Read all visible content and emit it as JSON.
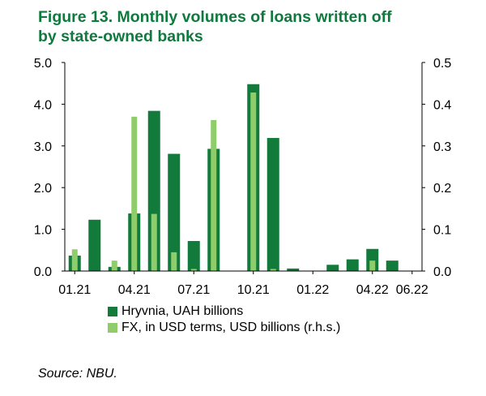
{
  "figure": {
    "title_line1": "Figure 13.  Monthly volumes of loans written off",
    "title_line2": "by state-owned banks",
    "source": "Source: NBU."
  },
  "colors": {
    "title": "#0e7a3e",
    "series_hryvnia": "#127a3a",
    "series_fx": "#8fcc6a",
    "axis": "#000000"
  },
  "chart_data": {
    "type": "bar",
    "title": "Figure 13.  Monthly volumes of loans written off by state-owned banks",
    "categories": [
      "01.21",
      "02.21",
      "03.21",
      "04.21",
      "05.21",
      "06.21",
      "07.21",
      "08.21",
      "09.21",
      "10.21",
      "11.21",
      "12.21",
      "01.22",
      "02.22",
      "03.22",
      "04.22",
      "05.22",
      "06.22"
    ],
    "x_tick_labels": [
      "01.21",
      "04.21",
      "07.21",
      "10.21",
      "01.22",
      "04.22",
      "06.22"
    ],
    "series": [
      {
        "name": "Hryvnia, UAH billions",
        "axis": "left",
        "values": [
          0.37,
          1.23,
          0.1,
          1.38,
          3.84,
          2.81,
          0.72,
          2.93,
          0.0,
          4.48,
          3.19,
          0.06,
          0.0,
          0.15,
          0.28,
          0.53,
          0.25,
          null
        ]
      },
      {
        "name": "FX, in USD terms, USD billions (r.h.s.)",
        "axis": "right",
        "values": [
          0.052,
          0.0,
          0.025,
          0.37,
          0.137,
          0.045,
          0.005,
          0.362,
          0.0,
          0.428,
          0.005,
          0.0,
          0.0,
          0.0,
          0.0,
          0.025,
          0.0,
          null
        ]
      }
    ],
    "y_left": {
      "range": [
        0,
        5
      ],
      "ticks": [
        "0.0",
        "1.0",
        "2.0",
        "3.0",
        "4.0",
        "5.0"
      ]
    },
    "y_right": {
      "range": [
        0,
        0.5
      ],
      "ticks": [
        "0.0",
        "0.1",
        "0.2",
        "0.3",
        "0.4",
        "0.5"
      ]
    },
    "grid": false,
    "legend_position": "bottom"
  }
}
